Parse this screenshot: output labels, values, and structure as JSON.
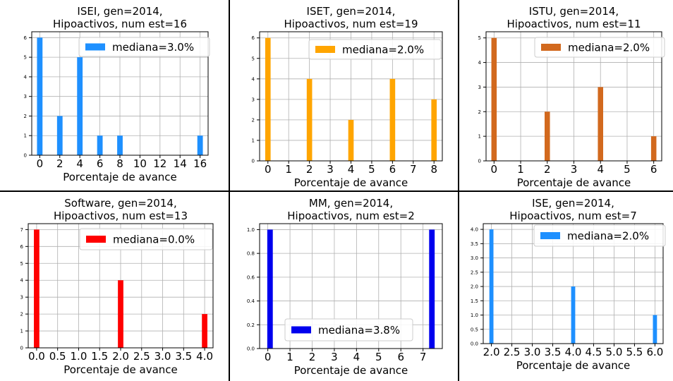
{
  "chart_data": [
    {
      "type": "bar",
      "title": "ISEI, gen=2014,",
      "subtitle": "Hipoactivos, num est=16",
      "xlabel": "Porcentaje de avance",
      "ylabel": "",
      "color": "#1e90ff",
      "legend": "mediana=3.0%",
      "legend_position": "top-right",
      "grid": true,
      "xlim": [
        -0.8,
        16.8
      ],
      "ylim": [
        0,
        6.3
      ],
      "xticks": [
        "0",
        "2",
        "4",
        "6",
        "8",
        "10",
        "12",
        "14",
        "16"
      ],
      "xtick_values": [
        0,
        2,
        4,
        6,
        8,
        10,
        12,
        14,
        16
      ],
      "yticks": [
        "0",
        "1",
        "2",
        "3",
        "4",
        "5",
        "6"
      ],
      "ytick_values": [
        0,
        1,
        2,
        3,
        4,
        5,
        6
      ],
      "x": [
        0,
        2,
        4,
        6,
        8,
        16
      ],
      "values": [
        6,
        2,
        5,
        1,
        1,
        1
      ],
      "bar_width": 0.55
    },
    {
      "type": "bar",
      "title": "ISET, gen=2014,",
      "subtitle": "Hipoactivos, num est=19",
      "xlabel": "Porcentaje de avance",
      "ylabel": "",
      "color": "#ffa500",
      "legend": "mediana=2.0%",
      "legend_position": "top-right",
      "grid": true,
      "xlim": [
        -0.4,
        8.4
      ],
      "ylim": [
        0,
        6.3
      ],
      "xticks": [
        "0",
        "1",
        "2",
        "3",
        "4",
        "5",
        "6",
        "7",
        "8"
      ],
      "xtick_values": [
        0,
        1,
        2,
        3,
        4,
        5,
        6,
        7,
        8
      ],
      "yticks": [
        "0",
        "1",
        "2",
        "3",
        "4",
        "5",
        "6"
      ],
      "ytick_values": [
        0,
        1,
        2,
        3,
        4,
        5,
        6
      ],
      "x": [
        0,
        2,
        4,
        6,
        8
      ],
      "values": [
        6,
        4,
        2,
        4,
        3
      ],
      "bar_width": 0.26
    },
    {
      "type": "bar",
      "title": "ISTU, gen=2014,",
      "subtitle": "Hipoactivos, num est=11",
      "xlabel": "Porcentaje de avance",
      "ylabel": "",
      "color": "#d2691e",
      "legend": "mediana=2.0%",
      "legend_position": "top-right",
      "grid": true,
      "xlim": [
        -0.3,
        6.3
      ],
      "ylim": [
        0,
        5.25
      ],
      "xticks": [
        "0",
        "1",
        "2",
        "3",
        "4",
        "5",
        "6"
      ],
      "xtick_values": [
        0,
        1,
        2,
        3,
        4,
        5,
        6
      ],
      "yticks": [
        "0",
        "1",
        "2",
        "3",
        "4",
        "5"
      ],
      "ytick_values": [
        0,
        1,
        2,
        3,
        4,
        5
      ],
      "x": [
        0,
        2,
        4,
        6
      ],
      "values": [
        5,
        2,
        3,
        1
      ],
      "bar_width": 0.2
    },
    {
      "type": "bar",
      "title": "Software, gen=2014,",
      "subtitle": "Hipoactivos, num est=13",
      "xlabel": "Porcentaje de avance",
      "ylabel": "",
      "color": "#ff0000",
      "legend": "mediana=0.0%",
      "legend_position": "top-right",
      "grid": true,
      "xlim": [
        -0.2,
        4.2
      ],
      "ylim": [
        0,
        7.35
      ],
      "xticks": [
        "0.0",
        "0.5",
        "1.0",
        "1.5",
        "2.0",
        "2.5",
        "3.0",
        "3.5",
        "4.0"
      ],
      "xtick_values": [
        0,
        0.5,
        1,
        1.5,
        2,
        2.5,
        3,
        3.5,
        4
      ],
      "yticks": [
        "0",
        "1",
        "2",
        "3",
        "4",
        "5",
        "6",
        "7"
      ],
      "ytick_values": [
        0,
        1,
        2,
        3,
        4,
        5,
        6,
        7
      ],
      "x": [
        0,
        2,
        4
      ],
      "values": [
        7,
        4,
        2
      ],
      "bar_width": 0.13
    },
    {
      "type": "bar",
      "title": "MM, gen=2014,",
      "subtitle": "Hipoactivos, num est=2",
      "xlabel": "Porcentaje de avance",
      "ylabel": "",
      "color": "#0000ee",
      "legend": "mediana=3.8%",
      "legend_position": "lower-center",
      "grid": true,
      "xlim": [
        -0.37,
        7.87
      ],
      "ylim": [
        0,
        1.05
      ],
      "xticks": [
        "0",
        "1",
        "2",
        "3",
        "4",
        "5",
        "6",
        "7"
      ],
      "xtick_values": [
        0,
        1,
        2,
        3,
        4,
        5,
        6,
        7
      ],
      "yticks": [
        "0.0",
        "0.2",
        "0.4",
        "0.6",
        "0.8",
        "1.0"
      ],
      "ytick_values": [
        0,
        0.2,
        0.4,
        0.6,
        0.8,
        1.0
      ],
      "x": [
        0.1,
        7.4
      ],
      "values": [
        1,
        1
      ],
      "bar_width": 0.25
    },
    {
      "type": "bar",
      "title": "ISE, gen=2014,",
      "subtitle": "Hipoactivos, num est=7",
      "xlabel": "Porcentaje de avance",
      "ylabel": "",
      "color": "#1e90ff",
      "legend": "mediana=2.0%",
      "legend_position": "top-right",
      "grid": true,
      "xlim": [
        1.8,
        6.2
      ],
      "ylim": [
        0,
        4.2
      ],
      "xticks": [
        "2.0",
        "2.5",
        "3.0",
        "3.5",
        "4.0",
        "4.5",
        "5.0",
        "5.5",
        "6.0"
      ],
      "xtick_values": [
        2,
        2.5,
        3,
        3.5,
        4,
        4.5,
        5,
        5.5,
        6
      ],
      "yticks": [
        "0.0",
        "0.5",
        "1.0",
        "1.5",
        "2.0",
        "2.5",
        "3.0",
        "3.5",
        "4.0"
      ],
      "ytick_values": [
        0,
        0.5,
        1,
        1.5,
        2,
        2.5,
        3,
        3.5,
        4
      ],
      "x": [
        2,
        4,
        6
      ],
      "values": [
        4,
        2,
        1
      ],
      "bar_width": 0.1
    }
  ]
}
